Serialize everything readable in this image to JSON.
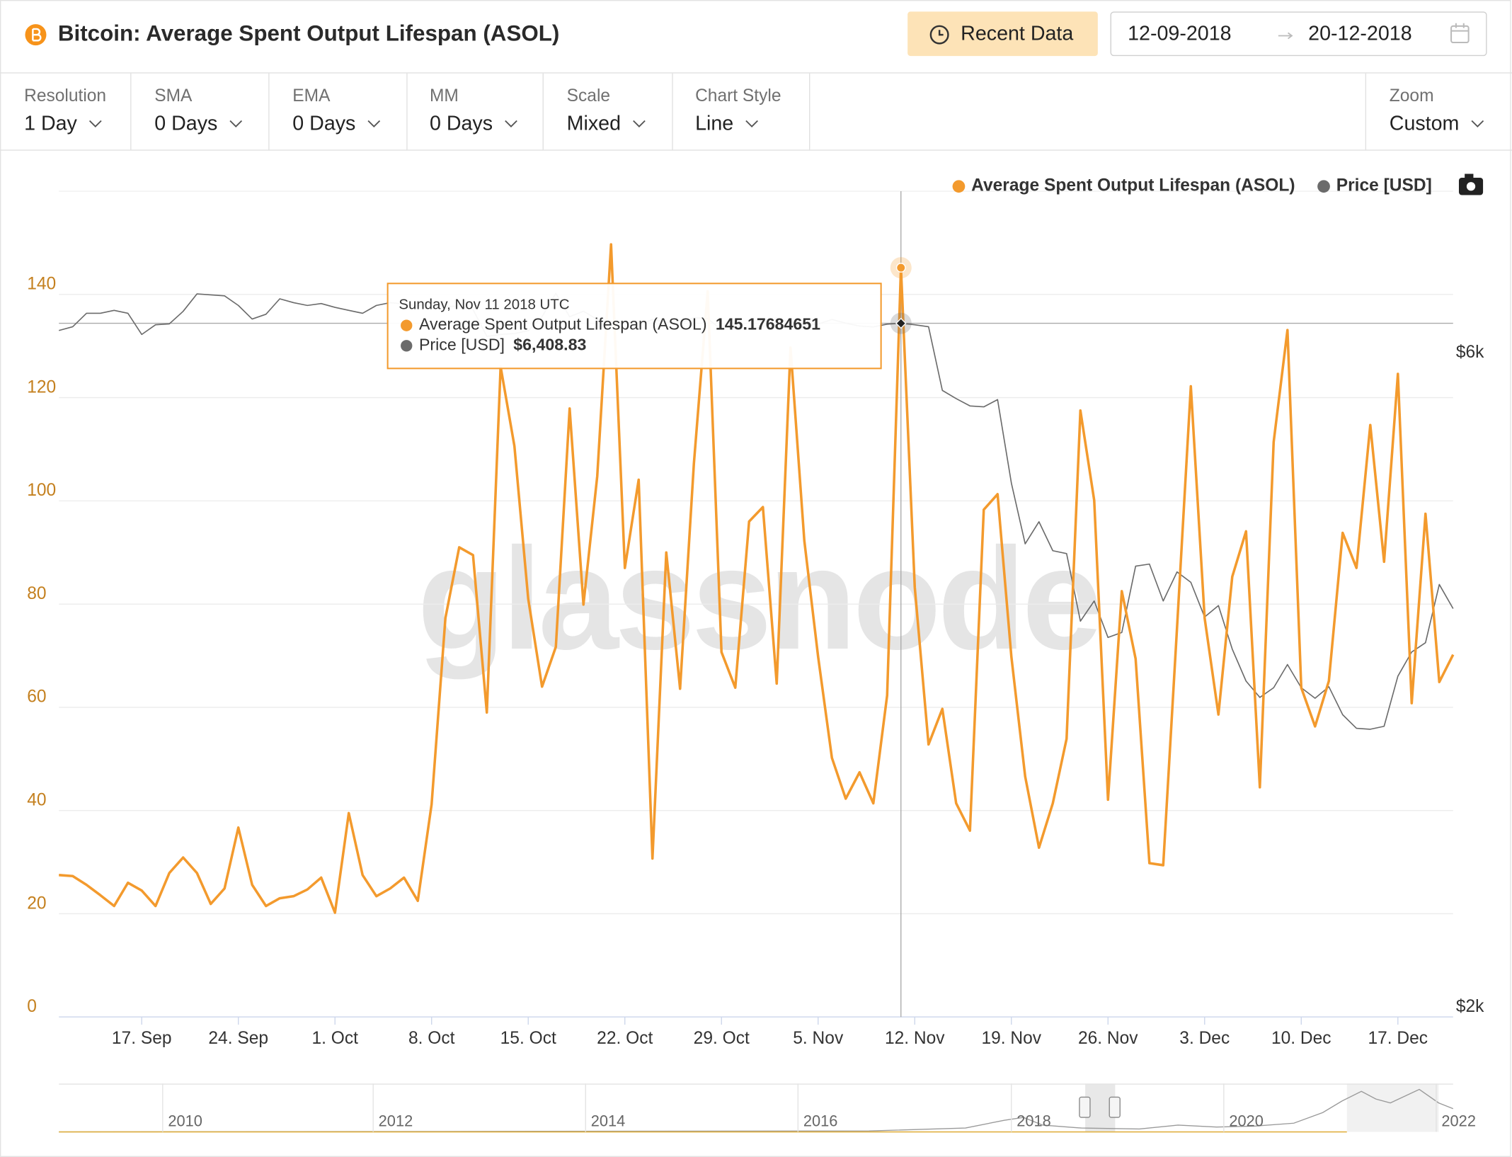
{
  "header": {
    "button": "Recent Data",
    "date_from": "12-09-2018",
    "date_to": "20-12-2018"
  },
  "controls": [
    {
      "label": "Resolution",
      "value": "1 Day"
    },
    {
      "label": "SMA",
      "value": "0 Days"
    },
    {
      "label": "EMA",
      "value": "0 Days"
    },
    {
      "label": "MM",
      "value": "0 Days"
    },
    {
      "label": "Scale",
      "value": "Mixed"
    },
    {
      "label": "Chart Style",
      "value": "Line"
    },
    {
      "label": "Zoom",
      "value": "Custom"
    }
  ],
  "chart_data": {
    "type": "line",
    "title": "Bitcoin: Average Spent Output Lifespan (ASOL)",
    "watermark": "glassnode",
    "legend": "top-right",
    "grid": true,
    "y2_log": true,
    "x": [
      "2018-09-11",
      "2018-09-12",
      "2018-09-13",
      "2018-09-14",
      "2018-09-15",
      "2018-09-16",
      "2018-09-17",
      "2018-09-18",
      "2018-09-19",
      "2018-09-20",
      "2018-09-21",
      "2018-09-22",
      "2018-09-23",
      "2018-09-24",
      "2018-09-25",
      "2018-09-26",
      "2018-09-27",
      "2018-09-28",
      "2018-09-29",
      "2018-09-30",
      "2018-10-01",
      "2018-10-02",
      "2018-10-03",
      "2018-10-04",
      "2018-10-05",
      "2018-10-06",
      "2018-10-07",
      "2018-10-08",
      "2018-10-09",
      "2018-10-10",
      "2018-10-11",
      "2018-10-12",
      "2018-10-13",
      "2018-10-14",
      "2018-10-15",
      "2018-10-16",
      "2018-10-17",
      "2018-10-18",
      "2018-10-19",
      "2018-10-20",
      "2018-10-21",
      "2018-10-22",
      "2018-10-23",
      "2018-10-24",
      "2018-10-25",
      "2018-10-26",
      "2018-10-27",
      "2018-10-28",
      "2018-10-29",
      "2018-10-30",
      "2018-10-31",
      "2018-11-01",
      "2018-11-02",
      "2018-11-03",
      "2018-11-04",
      "2018-11-05",
      "2018-11-06",
      "2018-11-07",
      "2018-11-08",
      "2018-11-09",
      "2018-11-10",
      "2018-11-11",
      "2018-11-12",
      "2018-11-13",
      "2018-11-14",
      "2018-11-15",
      "2018-11-16",
      "2018-11-17",
      "2018-11-18",
      "2018-11-19",
      "2018-11-20",
      "2018-11-21",
      "2018-11-22",
      "2018-11-23",
      "2018-11-24",
      "2018-11-25",
      "2018-11-26",
      "2018-11-27",
      "2018-11-28",
      "2018-11-29",
      "2018-11-30",
      "2018-12-01",
      "2018-12-02",
      "2018-12-03",
      "2018-12-04",
      "2018-12-05",
      "2018-12-06",
      "2018-12-07",
      "2018-12-08",
      "2018-12-09",
      "2018-12-10",
      "2018-12-11",
      "2018-12-12",
      "2018-12-13",
      "2018-12-14",
      "2018-12-15",
      "2018-12-16",
      "2018-12-17",
      "2018-12-18",
      "2018-12-19",
      "2018-12-20",
      "2018-12-21"
    ],
    "xlim": [
      "2018-09-11",
      "2018-12-21"
    ],
    "xticks": [
      {
        "value": "2018-09-17",
        "label": "17. Sep"
      },
      {
        "value": "2018-09-24",
        "label": "24. Sep"
      },
      {
        "value": "2018-10-01",
        "label": "1. Oct"
      },
      {
        "value": "2018-10-08",
        "label": "8. Oct"
      },
      {
        "value": "2018-10-15",
        "label": "15. Oct"
      },
      {
        "value": "2018-10-22",
        "label": "22. Oct"
      },
      {
        "value": "2018-10-29",
        "label": "29. Oct"
      },
      {
        "value": "2018-11-05",
        "label": "5. Nov"
      },
      {
        "value": "2018-11-12",
        "label": "12. Nov"
      },
      {
        "value": "2018-11-19",
        "label": "19. Nov"
      },
      {
        "value": "2018-11-26",
        "label": "26. Nov"
      },
      {
        "value": "2018-12-03",
        "label": "3. Dec"
      },
      {
        "value": "2018-12-10",
        "label": "10. Dec"
      },
      {
        "value": "2018-12-17",
        "label": "17. Dec"
      }
    ],
    "ylim": [
      0,
      160
    ],
    "yticks": [
      0,
      20,
      40,
      60,
      80,
      100,
      120,
      140
    ],
    "y2lim": [
      2000,
      8000
    ],
    "y2ticks": [
      {
        "value": 2000,
        "label": "$2k"
      },
      {
        "value": 6000,
        "label": "$6k"
      }
    ],
    "series": [
      {
        "name": "Average Spent Output Lifespan (ASOL)",
        "color": "#f39a2d",
        "values": [
          27.5,
          27.3,
          25.6,
          23.6,
          21.5,
          26.0,
          24.5,
          21.5,
          27.9,
          30.9,
          27.9,
          21.9,
          24.9,
          36.7,
          25.6,
          21.5,
          23.0,
          23.4,
          24.7,
          27.0,
          20.2,
          39.5,
          27.5,
          23.4,
          24.9,
          27.0,
          22.5,
          41.2,
          77.3,
          91.0,
          89.5,
          59.0,
          126.0,
          110.6,
          81.0,
          64.0,
          71.7,
          117.9,
          79.9,
          104.8,
          149.7,
          87.0,
          104.1,
          30.7,
          90.0,
          63.6,
          107.2,
          140.6,
          70.7,
          63.8,
          96.0,
          98.8,
          64.6,
          129.7,
          92.3,
          69.8,
          50.2,
          42.3,
          47.4,
          41.4,
          62.3,
          145.17684651,
          83.3,
          52.8,
          59.7,
          41.4,
          36.1,
          98.3,
          101.3,
          69.8,
          46.6,
          32.8,
          41.4,
          53.9,
          117.5,
          100.1,
          42.1,
          82.5,
          69.4,
          29.8,
          29.4,
          75.4,
          122.2,
          77.3,
          58.6,
          85.3,
          94.1,
          44.5,
          111.4,
          133.1,
          63.8,
          56.3,
          65.1,
          93.8,
          87.0,
          114.7,
          88.2,
          124.6,
          60.8,
          97.5,
          64.9,
          70.2
        ]
      },
      {
        "name": "Price [USD]",
        "color": "#6b6b6b",
        "axis": "y2",
        "values": [
          6332,
          6372,
          6518,
          6518,
          6550,
          6518,
          6290,
          6393,
          6403,
          6539,
          6733,
          6722,
          6711,
          6604,
          6455,
          6507,
          6678,
          6635,
          6604,
          6625,
          6583,
          6550,
          6518,
          6604,
          6635,
          6620,
          6600,
          6640,
          6590,
          6600,
          6560,
          6270,
          6290,
          6300,
          6330,
          6480,
          6740,
          6480,
          6540,
          6450,
          6430,
          6410,
          6390,
          6450,
          6420,
          6410,
          6470,
          6460,
          6340,
          6360,
          6350,
          6370,
          6470,
          6420,
          6390,
          6400,
          6450,
          6410,
          6380,
          6370,
          6400,
          6408.83,
          6393,
          6372,
          5726,
          5648,
          5579,
          5570,
          5638,
          4901,
          4426,
          4593,
          4375,
          4354,
          3887,
          4021,
          3782,
          3814,
          4263,
          4278,
          4021,
          4222,
          4149,
          3914,
          3990,
          3709,
          3515,
          3420,
          3476,
          3614,
          3476,
          3415,
          3482,
          3322,
          3247,
          3242,
          3258,
          3544,
          3691,
          3749,
          4134,
          3970
        ]
      }
    ],
    "tooltip": {
      "title": "Sunday, Nov 11 2018 UTC",
      "x": "2018-11-11",
      "price_label": "$6,408.83"
    }
  },
  "navigator": {
    "labels": [
      "2010",
      "2012",
      "2014",
      "2016",
      "2018",
      "2020",
      "2022"
    ]
  }
}
